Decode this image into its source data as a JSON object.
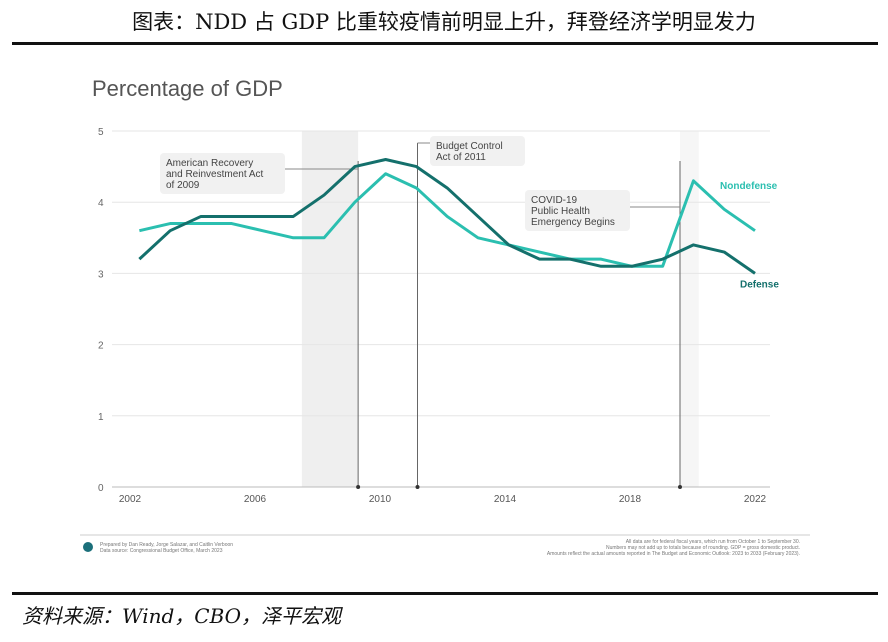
{
  "title": "图表：NDD 占 GDP 比重较疫情前明显上升，拜登经济学明显发力",
  "source": "资料来源：Wind，CBO，泽平宏观",
  "chart_data": {
    "type": "line",
    "subtitle": "Percentage of GDP",
    "x": [
      2002,
      2003,
      2004,
      2005,
      2006,
      2007,
      2008,
      2009,
      2010,
      2011,
      2012,
      2013,
      2014,
      2015,
      2016,
      2017,
      2018,
      2019,
      2020,
      2021,
      2022
    ],
    "x_ticks": [
      "2002",
      "2006",
      "2010",
      "2014",
      "2018",
      "2022"
    ],
    "y_ticks": [
      "0",
      "1",
      "2",
      "3",
      "4",
      "5"
    ],
    "ylim": [
      0,
      5
    ],
    "xlim": [
      2001.7,
      2023
    ],
    "grid": true,
    "series": [
      {
        "name": "Nondefense",
        "color": "#2bbfb0",
        "values": [
          3.6,
          3.7,
          3.7,
          3.7,
          3.6,
          3.5,
          3.5,
          4.0,
          4.4,
          4.2,
          3.8,
          3.5,
          3.4,
          3.3,
          3.2,
          3.2,
          3.1,
          3.1,
          4.3,
          3.9,
          3.6
        ]
      },
      {
        "name": "Defense",
        "color": "#14706c",
        "values": [
          3.2,
          3.6,
          3.8,
          3.8,
          3.8,
          3.8,
          4.1,
          4.5,
          4.6,
          4.5,
          4.2,
          3.8,
          3.4,
          3.2,
          3.2,
          3.1,
          3.1,
          3.2,
          3.4,
          3.3,
          3.0
        ]
      }
    ],
    "shaded_periods": [
      [
        2007.5,
        2009.3
      ],
      [
        2019.6,
        2020.2
      ]
    ],
    "annotations": [
      {
        "x": 2009.3,
        "lines": [
          "American Recovery",
          "and Reinvestment Act",
          "of 2009"
        ]
      },
      {
        "x": 2011.2,
        "lines": [
          "Budget Control",
          "Act of 2011"
        ]
      },
      {
        "x": 2019.6,
        "lines": [
          "COVID-19",
          "Public Health",
          "Emergency Begins"
        ]
      }
    ],
    "footer_left": [
      "Prepared by Dan Ready, Jorge Salazar, and Caitlin Verboon",
      "Data source: Congressional Budget Office, March 2023"
    ],
    "footer_right": [
      "All data are for federal fiscal years, which run from October 1 to September 30.",
      "Numbers may not add up to totals because of rounding. GDP = gross domestic product.",
      "Amounts reflect the actual amounts reported in The Budget and Economic Outlook: 2023 to 2033 (February 2023)."
    ]
  }
}
